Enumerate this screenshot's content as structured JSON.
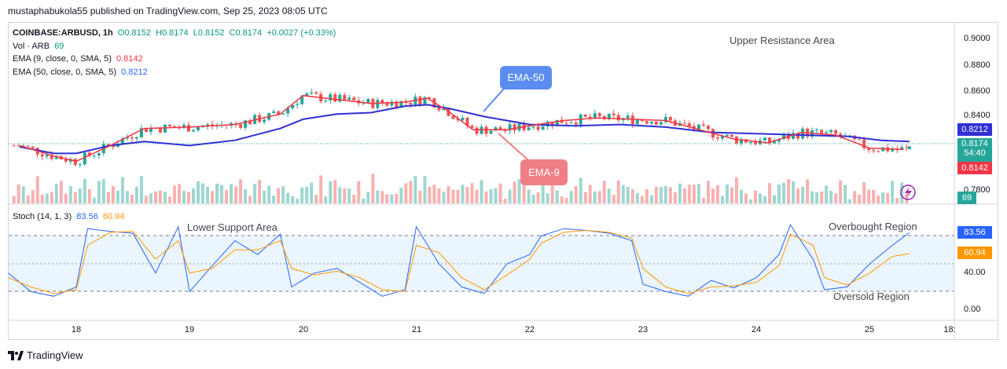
{
  "header": {
    "published": "mustaphabukola55 published on TradingView.com, Sep 25, 2023 08:05 UTC"
  },
  "legend": {
    "symbol": "COINBASE:ARBUSD, 1h",
    "open": "O0.8152",
    "high": "H0.8174",
    "low": "L0.8152",
    "close": "C0.8174",
    "change": "+0.0027 (+0.33%)",
    "vol_label": "Vol · ARB",
    "vol_value": "69",
    "ema9_label": "EMA (9, close, 0, SMA, 5)",
    "ema9_value": "0.8142",
    "ema50_label": "EMA (50, close, 0, SMA, 5)",
    "ema50_value": "0.8212",
    "stoch_label": "Stoch (14, 1, 3)",
    "stoch_k": "83.56",
    "stoch_d": "60.94"
  },
  "annotations": {
    "upper_resistance": "Upper Resistance Area",
    "lower_support": "Lower Support Area",
    "overbought": "Overbought Region",
    "oversold": "Oversold Region",
    "ema50_bubble": "EMA-50",
    "ema9_bubble": "EMA-9"
  },
  "price_axis": {
    "ticks": [
      "0.9000",
      "0.8800",
      "0.8600",
      "0.8400",
      "0.7800"
    ],
    "labels": {
      "ema50": "0.8212",
      "price": "0.8174",
      "countdown": "54:40",
      "ema9": "0.8142",
      "volume": "69"
    }
  },
  "stoch_axis": {
    "ticks": [
      "40.00",
      "0.00"
    ],
    "labels": {
      "k": "83.56",
      "d": "60.94"
    }
  },
  "time_axis": {
    "ticks": [
      "18",
      "19",
      "20",
      "21",
      "22",
      "23",
      "24",
      "25",
      "18:"
    ]
  },
  "footer": {
    "brand": "TradingView"
  },
  "colors": {
    "up": "#26a69a",
    "down": "#ef5350",
    "ema9": "#f23645",
    "ema50": "#2f2fd6",
    "stoch_k": "#2962ff",
    "stoch_d": "#ff9800",
    "band": "#e3f2fd",
    "bubble50": "#5b8df0",
    "bubble9": "#f07f85"
  },
  "chart_data": [
    {
      "type": "candlestick",
      "title": "COINBASE:ARBUSD, 1h",
      "ylim": [
        0.776,
        0.906
      ],
      "x_range": [
        "Sep 17",
        "Sep 25"
      ],
      "series": [
        {
          "name": "EMA (9, close, 0, SMA, 5)",
          "x": [
            17.5,
            17.8,
            18.0,
            18.3,
            18.6,
            19.0,
            19.4,
            19.8,
            20.0,
            20.3,
            20.6,
            20.9,
            21.1,
            21.3,
            21.5,
            21.8,
            22.0,
            22.3,
            22.6,
            22.9,
            23.2,
            23.5,
            23.8,
            24.1,
            24.4,
            24.7,
            25.0,
            25.3
          ],
          "values": [
            0.818,
            0.81,
            0.806,
            0.818,
            0.831,
            0.832,
            0.834,
            0.842,
            0.856,
            0.853,
            0.85,
            0.851,
            0.854,
            0.843,
            0.83,
            0.83,
            0.833,
            0.837,
            0.839,
            0.838,
            0.837,
            0.83,
            0.823,
            0.82,
            0.828,
            0.826,
            0.816,
            0.815
          ]
        },
        {
          "name": "EMA (50, close, 0, SMA, 5)",
          "x": [
            17.5,
            17.8,
            18.0,
            18.3,
            18.6,
            19.0,
            19.4,
            19.8,
            20.0,
            20.3,
            20.6,
            20.9,
            21.1,
            21.3,
            21.6,
            22.0,
            22.4,
            22.8,
            23.2,
            23.6,
            24.0,
            24.4,
            24.8,
            25.1,
            25.35
          ],
          "values": [
            0.817,
            0.812,
            0.812,
            0.818,
            0.821,
            0.818,
            0.822,
            0.831,
            0.838,
            0.842,
            0.843,
            0.848,
            0.849,
            0.846,
            0.84,
            0.834,
            0.833,
            0.834,
            0.832,
            0.828,
            0.827,
            0.826,
            0.825,
            0.822,
            0.821
          ]
        }
      ],
      "last": {
        "open": 0.8152,
        "high": 0.8174,
        "low": 0.8152,
        "close": 0.8174
      }
    },
    {
      "type": "line",
      "title": "Stoch (14, 1, 3)",
      "ylim": [
        0,
        100
      ],
      "bands": [
        20,
        50,
        80
      ],
      "series": [
        {
          "name": "K",
          "x": [
            17.4,
            17.6,
            17.8,
            18.0,
            18.1,
            18.3,
            18.5,
            18.7,
            18.9,
            19.0,
            19.2,
            19.4,
            19.6,
            19.8,
            19.9,
            20.1,
            20.3,
            20.5,
            20.7,
            20.9,
            21.0,
            21.2,
            21.4,
            21.6,
            21.8,
            22.0,
            22.1,
            22.3,
            22.5,
            22.7,
            22.9,
            23.0,
            23.2,
            23.4,
            23.6,
            23.8,
            24.0,
            24.2,
            24.3,
            24.5,
            24.6,
            24.8,
            25.0,
            25.2,
            25.35
          ],
          "values": [
            40,
            20,
            15,
            25,
            88,
            85,
            83,
            40,
            90,
            20,
            48,
            75,
            60,
            82,
            25,
            40,
            45,
            30,
            15,
            22,
            90,
            50,
            25,
            18,
            50,
            60,
            80,
            88,
            86,
            83,
            75,
            28,
            20,
            15,
            32,
            24,
            35,
            60,
            92,
            55,
            22,
            25,
            50,
            70,
            83.56
          ]
        },
        {
          "name": "D",
          "x": [
            17.4,
            17.6,
            17.8,
            18.0,
            18.1,
            18.3,
            18.5,
            18.7,
            18.9,
            19.0,
            19.2,
            19.4,
            19.6,
            19.8,
            19.9,
            20.1,
            20.3,
            20.5,
            20.7,
            20.9,
            21.0,
            21.2,
            21.4,
            21.6,
            21.8,
            22.0,
            22.1,
            22.3,
            22.5,
            22.7,
            22.9,
            23.0,
            23.2,
            23.4,
            23.6,
            23.8,
            24.0,
            24.2,
            24.3,
            24.5,
            24.6,
            24.8,
            25.0,
            25.2,
            25.35
          ],
          "values": [
            35,
            25,
            18,
            22,
            70,
            84,
            85,
            55,
            75,
            40,
            45,
            65,
            65,
            75,
            45,
            38,
            42,
            35,
            22,
            20,
            70,
            62,
            35,
            22,
            38,
            55,
            72,
            84,
            86,
            84,
            78,
            45,
            25,
            18,
            25,
            26,
            30,
            48,
            82,
            70,
            35,
            27,
            40,
            58,
            60.94
          ]
        }
      ]
    },
    {
      "type": "bar",
      "title": "Vol · ARB",
      "last_value": 69
    }
  ]
}
